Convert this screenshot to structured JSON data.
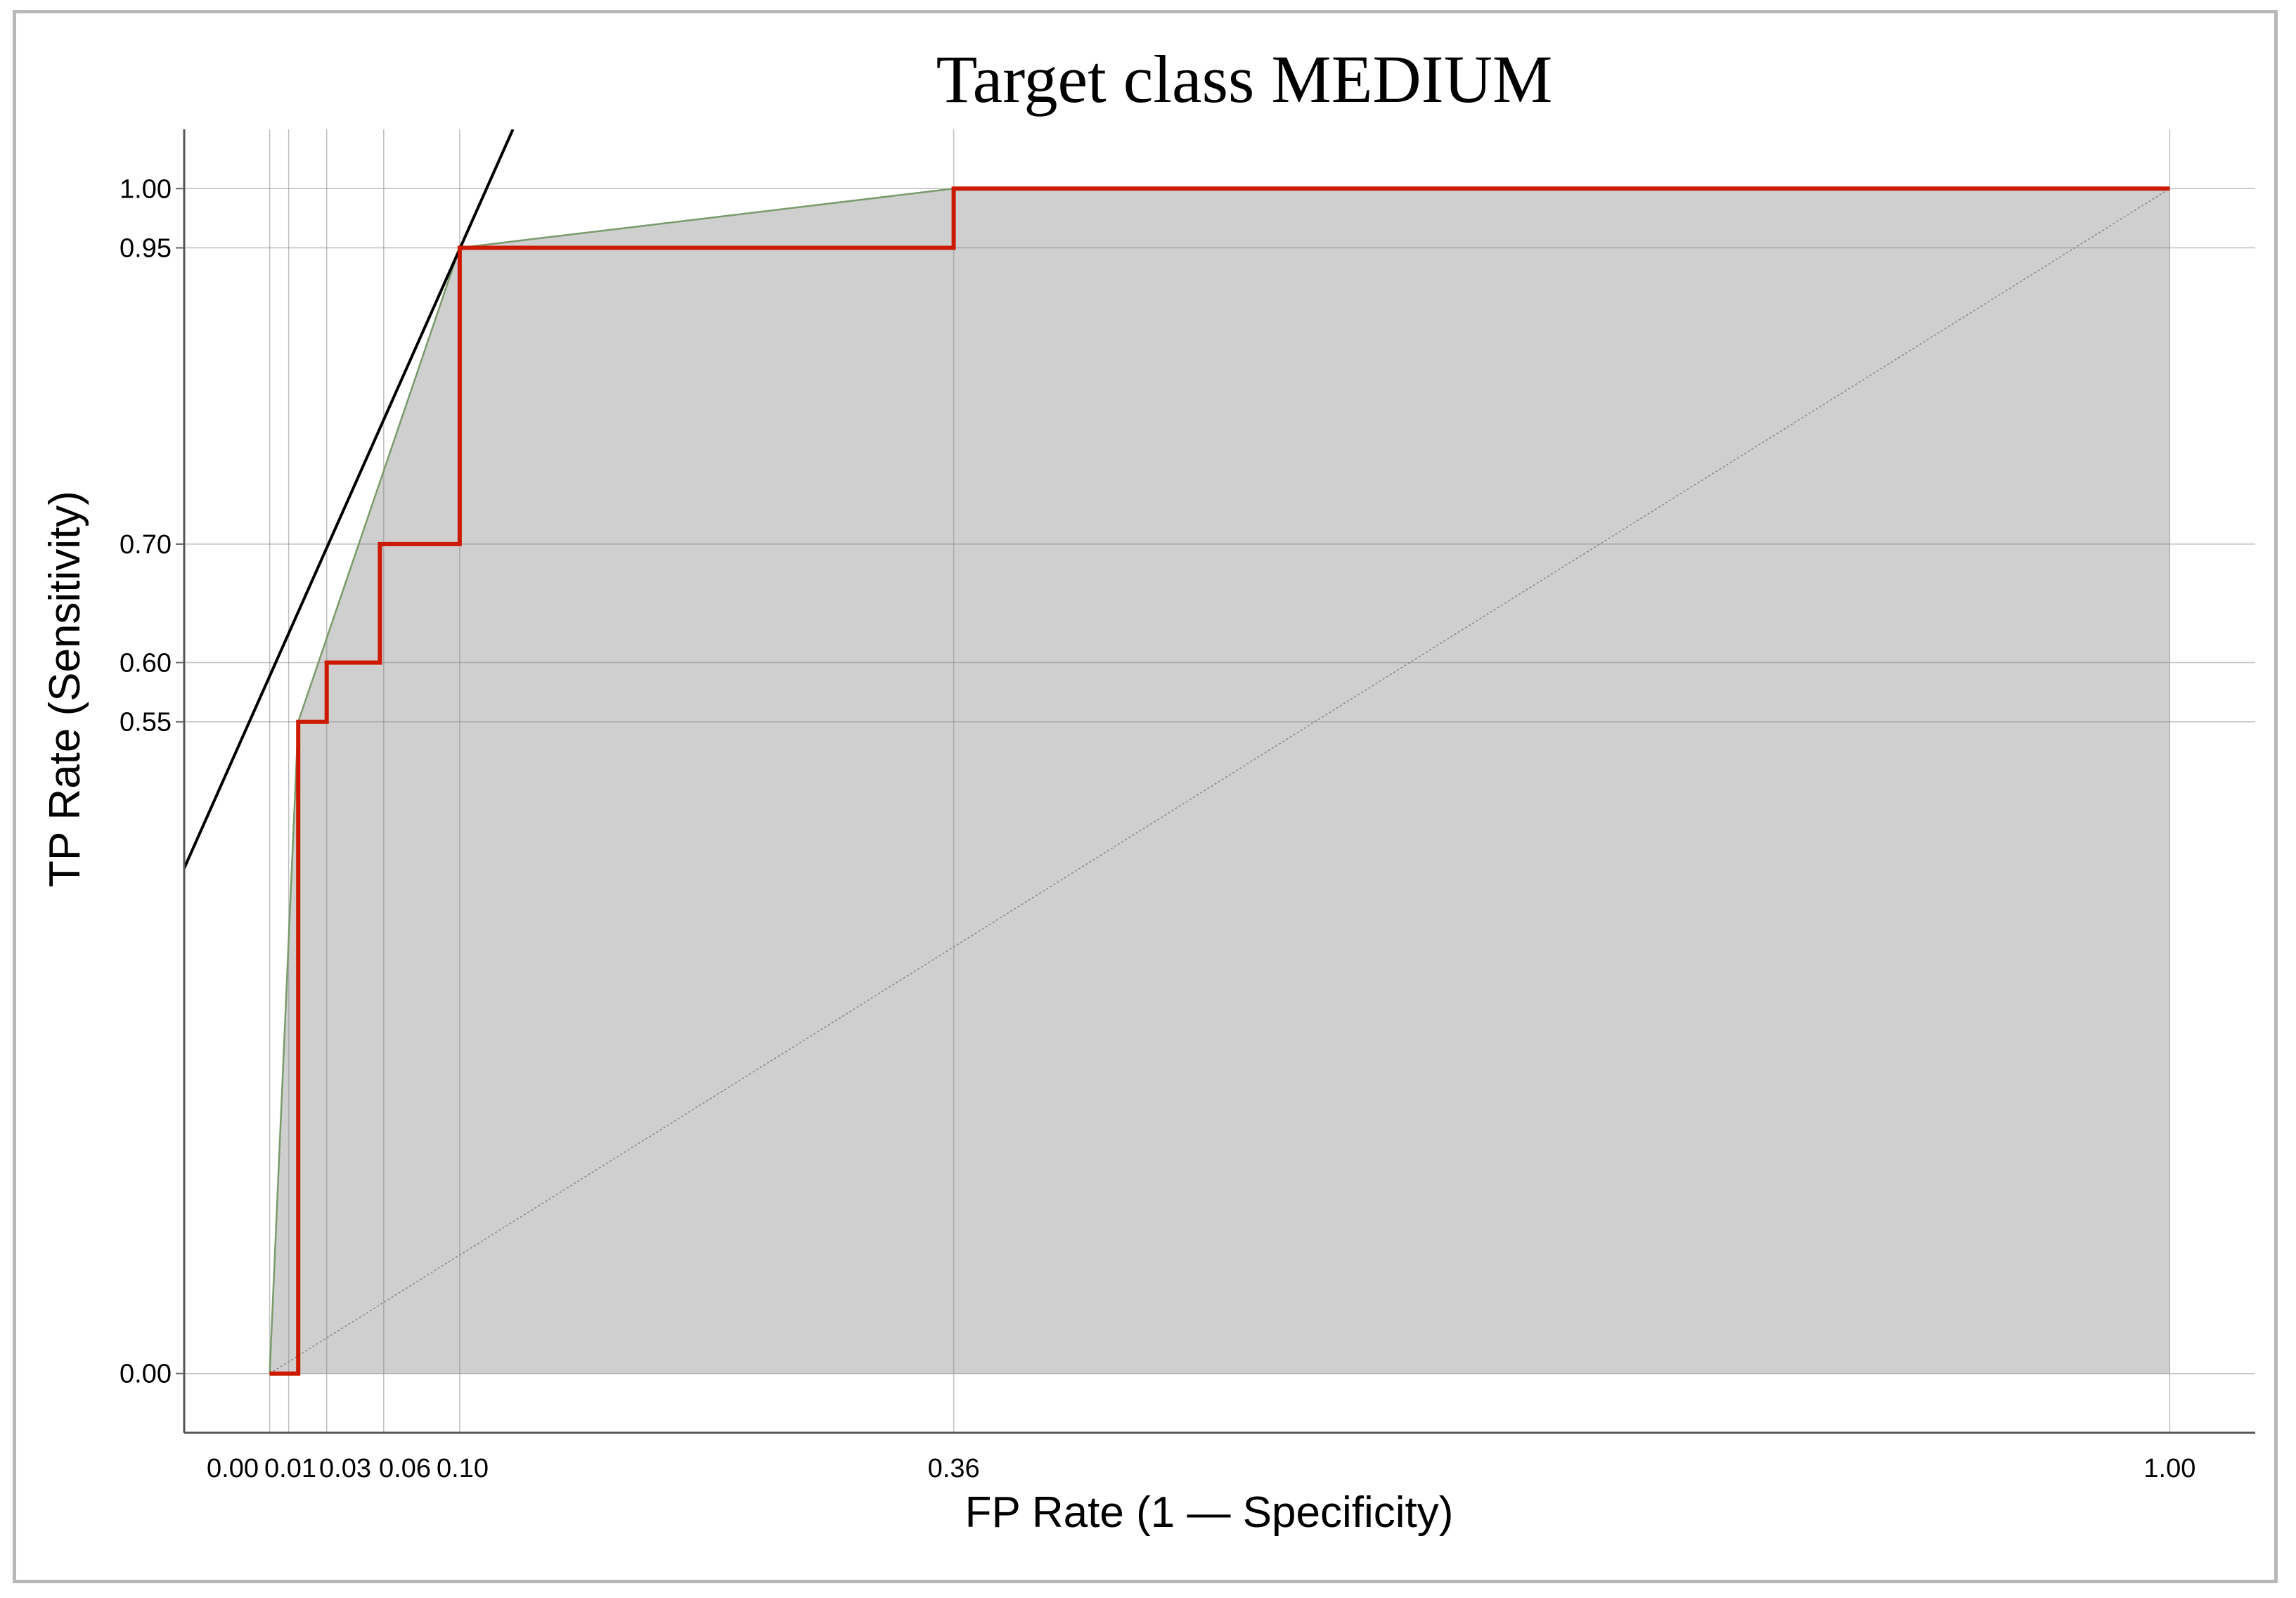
{
  "chart_data": {
    "type": "line",
    "title": "Target class MEDIUM",
    "xlabel": "FP Rate (1 — Specificity)",
    "ylabel": "TP Rate (Sensitivity)",
    "xlim": [
      -0.045,
      1.045
    ],
    "ylim": [
      -0.05,
      1.05
    ],
    "x_ticks": [
      0.0,
      0.01,
      0.03,
      0.06,
      0.1,
      0.36,
      1.0
    ],
    "x_tick_labels": [
      "0.00",
      "0.01",
      "0.03",
      "0.06",
      "0.10",
      "0.36",
      "1.00"
    ],
    "y_ticks": [
      0.0,
      0.55,
      0.6,
      0.7,
      0.95,
      1.0
    ],
    "y_tick_labels": [
      "0.00",
      "0.55",
      "0.60",
      "0.70",
      "0.95",
      "1.00"
    ],
    "grid": true,
    "series": [
      {
        "kind": "roc-step",
        "color": "#cc1a00",
        "points": [
          [
            0.0,
            0.0
          ],
          [
            0.015,
            0.0
          ],
          [
            0.015,
            0.55
          ],
          [
            0.03,
            0.55
          ],
          [
            0.03,
            0.6
          ],
          [
            0.058,
            0.6
          ],
          [
            0.058,
            0.7
          ],
          [
            0.1,
            0.7
          ],
          [
            0.1,
            0.95
          ],
          [
            0.36,
            0.95
          ],
          [
            0.36,
            1.0
          ],
          [
            1.0,
            1.0
          ]
        ]
      },
      {
        "kind": "convex-hull",
        "color": "#7a9a6a",
        "fill": "#cfcfcf",
        "points": [
          [
            0.0,
            0.0
          ],
          [
            0.015,
            0.55
          ],
          [
            0.1,
            0.95
          ],
          [
            0.36,
            1.0
          ],
          [
            1.0,
            1.0
          ]
        ]
      },
      {
        "kind": "diagonal",
        "color": "#888888",
        "points": [
          [
            0.0,
            0.0
          ],
          [
            1.0,
            1.0
          ]
        ]
      },
      {
        "kind": "iso-performance-line",
        "color": "#000000",
        "points": [
          [
            -0.049,
            0.412
          ],
          [
            0.128,
            1.05
          ]
        ]
      }
    ]
  }
}
